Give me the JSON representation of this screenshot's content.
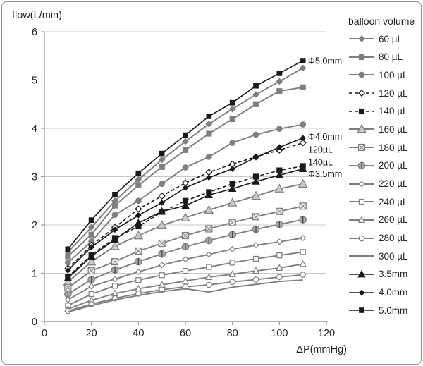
{
  "window": {
    "y_axis_title": "flow(L/min)",
    "x_axis_title": "ΔP(mmHg)"
  },
  "legend": {
    "title": "balloon volume"
  },
  "chart_data": {
    "type": "line",
    "xlabel": "ΔP(mmHg)",
    "ylabel": "flow(L/min)",
    "xlim": [
      0,
      120
    ],
    "ylim": [
      0,
      6
    ],
    "xticks": [
      0,
      20,
      40,
      60,
      80,
      100,
      120
    ],
    "yticks": [
      0,
      1,
      2,
      3,
      4,
      5,
      6
    ],
    "grid": "horizontal-only",
    "legend_position": "right",
    "legend_title": "balloon volume",
    "x": [
      10,
      20,
      30,
      40,
      50,
      60,
      70,
      80,
      90,
      100,
      110
    ],
    "series": [
      {
        "name": "60uL",
        "label": "60 µL",
        "color": "#7f7f7f",
        "dash": "solid",
        "marker": {
          "shape": "diamond",
          "size": 8,
          "fill": "#7f7f7f"
        },
        "values": [
          1.44,
          1.95,
          2.5,
          2.94,
          3.35,
          3.73,
          4.09,
          4.4,
          4.7,
          4.97,
          5.25
        ]
      },
      {
        "name": "80uL",
        "label": "80 µL",
        "color": "#7f7f7f",
        "dash": "solid",
        "marker": {
          "shape": "square",
          "size": 7,
          "fill": "#7f7f7f"
        },
        "values": [
          1.35,
          1.8,
          2.4,
          2.82,
          3.2,
          3.55,
          3.89,
          4.19,
          4.5,
          4.77,
          4.85
        ]
      },
      {
        "name": "100uL",
        "label": "100 µL",
        "color": "#7f7f7f",
        "dash": "solid",
        "marker": {
          "shape": "circle",
          "size": 7.5,
          "fill": "#7f7f7f"
        },
        "values": [
          1.22,
          1.66,
          2.21,
          2.5,
          2.85,
          3.19,
          3.41,
          3.7,
          3.87,
          3.99,
          4.08
        ]
      },
      {
        "name": "120uL",
        "label": "120 µL",
        "color": "#1a1a1a",
        "dash": "dashed",
        "marker": {
          "shape": "diamond",
          "size": 8.5,
          "fill": "#ffffff"
        },
        "values": [
          1.1,
          1.58,
          1.95,
          2.33,
          2.6,
          2.87,
          3.09,
          3.26,
          3.41,
          3.55,
          3.7
        ]
      },
      {
        "name": "140uL",
        "label": "140 µL",
        "color": "#1a1a1a",
        "dash": "dashed",
        "marker": {
          "shape": "square",
          "size": 7,
          "fill": "#1a1a1a"
        },
        "values": [
          0.93,
          1.38,
          1.73,
          1.97,
          2.27,
          2.5,
          2.68,
          2.85,
          3.0,
          3.13,
          3.22
        ]
      },
      {
        "name": "160uL",
        "label": "160 µL",
        "color": "#7f7f7f",
        "dash": "solid",
        "marker": {
          "shape": "triangle",
          "size": 11,
          "fill": "#c9c9c9"
        },
        "values": [
          0.82,
          1.24,
          1.56,
          1.78,
          1.99,
          2.15,
          2.31,
          2.46,
          2.6,
          2.75,
          2.85
        ]
      },
      {
        "name": "180uL",
        "label": "180 µL",
        "color": "#7f7f7f",
        "dash": "solid",
        "marker": {
          "shape": "square-x",
          "size": 9,
          "fill": "#efefef"
        },
        "values": [
          0.7,
          1.05,
          1.24,
          1.46,
          1.62,
          1.78,
          1.92,
          2.05,
          2.17,
          2.28,
          2.39
        ]
      },
      {
        "name": "200uL",
        "label": "200 µL",
        "color": "#7f7f7f",
        "dash": "solid",
        "marker": {
          "shape": "circle-bar",
          "size": 9.5,
          "fill": "#a8a8a8"
        },
        "values": [
          0.57,
          0.87,
          1.07,
          1.24,
          1.4,
          1.55,
          1.68,
          1.8,
          1.91,
          2.01,
          2.11
        ]
      },
      {
        "name": "220uL",
        "label": "220 µL",
        "color": "#7f7f7f",
        "dash": "solid",
        "marker": {
          "shape": "diamond",
          "size": 7.5,
          "fill": "#ffffff"
        },
        "values": [
          0.45,
          0.73,
          0.88,
          1.03,
          1.17,
          1.29,
          1.39,
          1.5,
          1.58,
          1.65,
          1.73
        ]
      },
      {
        "name": "240uL",
        "label": "240 µL",
        "color": "#7f7f7f",
        "dash": "solid",
        "marker": {
          "shape": "square",
          "size": 7,
          "fill": "#ffffff"
        },
        "values": [
          0.33,
          0.57,
          0.74,
          0.86,
          0.96,
          1.05,
          1.13,
          1.22,
          1.3,
          1.37,
          1.44
        ]
      },
      {
        "name": "260uL",
        "label": "260 µL",
        "color": "#7f7f7f",
        "dash": "solid",
        "marker": {
          "shape": "triangle",
          "size": 8,
          "fill": "#ffffff"
        },
        "values": [
          0.26,
          0.44,
          0.58,
          0.68,
          0.76,
          0.84,
          0.92,
          0.98,
          1.05,
          1.11,
          1.19
        ]
      },
      {
        "name": "280uL",
        "label": "280 µL",
        "color": "#7f7f7f",
        "dash": "solid",
        "marker": {
          "shape": "circle",
          "size": 7.5,
          "fill": "#ffffff"
        },
        "values": [
          0.22,
          0.36,
          0.48,
          0.58,
          0.66,
          0.72,
          0.76,
          0.82,
          0.87,
          0.92,
          0.97
        ]
      },
      {
        "name": "300uL",
        "label": "300 µL",
        "color": "#7f7f7f",
        "dash": "solid",
        "marker": {
          "shape": "none",
          "size": 0,
          "fill": "none"
        },
        "values": [
          0.2,
          0.33,
          0.45,
          0.54,
          0.62,
          0.68,
          0.61,
          0.71,
          0.77,
          0.83,
          0.86
        ]
      },
      {
        "name": "3.5mm",
        "label": "3.5mm",
        "color": "#1a1a1a",
        "dash": "solid",
        "marker": {
          "shape": "triangle",
          "size": 9,
          "fill": "#1a1a1a"
        },
        "values": [
          0.9,
          1.35,
          1.7,
          2.04,
          2.28,
          2.4,
          2.62,
          2.75,
          2.9,
          3.03,
          3.16
        ]
      },
      {
        "name": "4.0mm",
        "label": "4.0mm",
        "color": "#1a1a1a",
        "dash": "solid",
        "marker": {
          "shape": "diamond",
          "size": 7,
          "fill": "#1a1a1a"
        },
        "values": [
          1.06,
          1.54,
          1.9,
          2.2,
          2.46,
          2.77,
          2.98,
          3.16,
          3.4,
          3.61,
          3.8
        ]
      },
      {
        "name": "5.0mm",
        "label": "5.0mm",
        "color": "#1a1a1a",
        "dash": "solid",
        "marker": {
          "shape": "square",
          "size": 6.5,
          "fill": "#1a1a1a"
        },
        "values": [
          1.5,
          2.1,
          2.63,
          3.07,
          3.48,
          3.86,
          4.25,
          4.53,
          4.88,
          5.14,
          5.4
        ]
      }
    ],
    "annotations": [
      {
        "text": "Φ5.0mm",
        "x": 112.2,
        "y": 5.4
      },
      {
        "text": "Φ4.0mm",
        "x": 112.2,
        "y": 3.83
      },
      {
        "text": "120µL",
        "x": 112.2,
        "y": 3.56
      },
      {
        "text": "140µL",
        "x": 112.2,
        "y": 3.3
      },
      {
        "text": "Φ3.5mm",
        "x": 112.2,
        "y": 3.06
      }
    ]
  },
  "colors": {
    "series_gray": "#7f7f7f",
    "series_black": "#1a1a1a",
    "gridline": "#c9c9c9",
    "axis": "#9b9b9b",
    "tick_text": "#262626",
    "border": "#8f8f8f"
  }
}
